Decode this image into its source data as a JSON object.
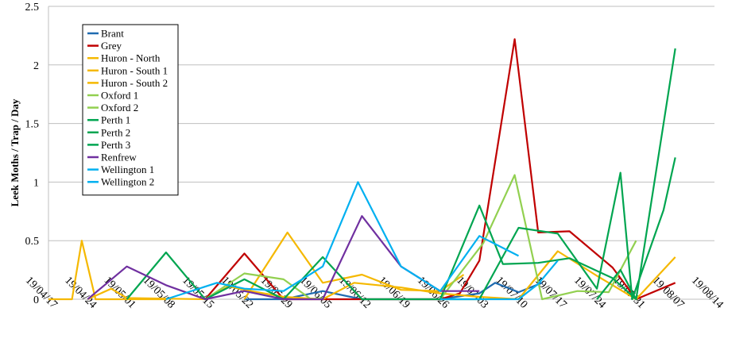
{
  "chart_data": {
    "type": "line",
    "title": "",
    "xlabel": "",
    "ylabel": "Leek Moths / Trap / Day",
    "ylim": [
      0,
      2.5
    ],
    "y_ticks": [
      0,
      0.5,
      1,
      1.5,
      2,
      2.5
    ],
    "y_tick_labels": [
      "0",
      "0.5",
      "1",
      "1.5",
      "2",
      "2.5"
    ],
    "grid": true,
    "legend_position": "top-left",
    "categories": [
      "19/04/17",
      "19/04/24",
      "19/05/01",
      "19/05/08",
      "19/05/15",
      "19/05/22",
      "19/05/29",
      "19/06/05",
      "19/06/12",
      "19/06/19",
      "19/06/26",
      "19/07/03",
      "19/07/10",
      "19/07/17",
      "19/07/24",
      "19/07/31",
      "19/08/07",
      "19/08/14"
    ],
    "series": [
      {
        "name": "Brant",
        "color": "#1f6bb0",
        "points": [
          [
            5.0,
            0
          ],
          [
            6.0,
            0
          ],
          [
            7.0,
            0.07
          ],
          [
            8.0,
            0
          ],
          [
            9.0,
            0
          ],
          [
            10.0,
            0
          ],
          [
            11.0,
            0.05
          ],
          [
            11.4,
            0.14
          ],
          [
            12.0,
            0.06
          ],
          [
            12.6,
            0.14
          ]
        ]
      },
      {
        "name": "Grey",
        "color": "#c00000",
        "points": [
          [
            4.0,
            0
          ],
          [
            5.0,
            0.39
          ],
          [
            6.0,
            0
          ],
          [
            10.0,
            0
          ],
          [
            10.5,
            0.05
          ],
          [
            11.0,
            0.33
          ],
          [
            11.9,
            2.22
          ],
          [
            12.5,
            0.57
          ],
          [
            13.3,
            0.58
          ],
          [
            14.4,
            0.27
          ],
          [
            15.0,
            0
          ],
          [
            16.0,
            0.14
          ]
        ]
      },
      {
        "name": "Huron - North",
        "color": "#f5b800",
        "points": [
          [
            0.0,
            0
          ],
          [
            0.6,
            0
          ],
          [
            0.85,
            0.5
          ],
          [
            1.2,
            0
          ],
          [
            2.0,
            0
          ],
          [
            2.5,
            0
          ],
          [
            3.0,
            0
          ]
        ]
      },
      {
        "name": "Huron - South 1",
        "color": "#f5b800",
        "points": [
          [
            1.0,
            0
          ],
          [
            1.6,
            0.09
          ],
          [
            2.0,
            0.01
          ],
          [
            4.0,
            0
          ],
          [
            4.6,
            0.11
          ],
          [
            5.0,
            0.08
          ],
          [
            6.0,
            0.02
          ],
          [
            7.0,
            0
          ],
          [
            7.8,
            0.14
          ],
          [
            9.0,
            0.1
          ],
          [
            10.0,
            0.05
          ],
          [
            11.0,
            0.02
          ],
          [
            12.0,
            0
          ],
          [
            13.0,
            0.41
          ],
          [
            14.0,
            0.2
          ],
          [
            15.0,
            0
          ],
          [
            16.0,
            0.36
          ]
        ]
      },
      {
        "name": "Huron - South 2",
        "color": "#f5b800",
        "points": [
          [
            5.0,
            0
          ],
          [
            6.1,
            0.57
          ],
          [
            7.0,
            0.14
          ],
          [
            8.0,
            0.21
          ],
          [
            9.0,
            0.08
          ],
          [
            10.0,
            0.07
          ],
          [
            10.6,
            0.21
          ]
        ]
      },
      {
        "name": "Oxford 1",
        "color": "#92d050",
        "points": [
          [
            10.0,
            0
          ],
          [
            11.1,
            0.48
          ],
          [
            11.9,
            1.06
          ],
          [
            12.6,
            0
          ],
          [
            13.5,
            0.07
          ],
          [
            14.3,
            0.06
          ],
          [
            15.0,
            0.5
          ]
        ]
      },
      {
        "name": "Oxford 2",
        "color": "#92d050",
        "points": [
          [
            4.0,
            0
          ],
          [
            5.0,
            0.22
          ],
          [
            6.0,
            0.17
          ],
          [
            6.7,
            0
          ],
          [
            7.0,
            0.01
          ]
        ]
      },
      {
        "name": "Perth 1",
        "color": "#00a550",
        "points": [
          [
            2.0,
            0
          ],
          [
            3.0,
            0.4
          ],
          [
            4.0,
            0
          ],
          [
            5.0,
            0.17
          ],
          [
            6.0,
            0
          ],
          [
            7.0,
            0.36
          ],
          [
            8.0,
            0
          ],
          [
            9.0,
            0
          ],
          [
            10.0,
            0
          ],
          [
            11.0,
            0
          ],
          [
            12.0,
            0.61
          ],
          [
            13.0,
            0.56
          ],
          [
            14.0,
            0.09
          ],
          [
            14.6,
            1.08
          ],
          [
            14.9,
            0
          ],
          [
            15.7,
            0.76
          ],
          [
            16.0,
            1.21
          ]
        ]
      },
      {
        "name": "Perth 2",
        "color": "#00a550",
        "points": [
          [
            10.0,
            0
          ],
          [
            11.0,
            0.8
          ],
          [
            11.6,
            0.3
          ],
          [
            12.5,
            0.31
          ],
          [
            13.3,
            0.35
          ],
          [
            14.4,
            0.18
          ],
          [
            15.0,
            0
          ],
          [
            16.0,
            2.14
          ]
        ]
      },
      {
        "name": "Perth 3",
        "color": "#00a550",
        "points": [
          [
            14.0,
            0
          ],
          [
            14.6,
            0.25
          ],
          [
            15.0,
            0
          ]
        ]
      },
      {
        "name": "Renfrew",
        "color": "#7030a0",
        "points": [
          [
            1.0,
            0
          ],
          [
            2.0,
            0.28
          ],
          [
            3.0,
            0.12
          ],
          [
            4.0,
            0
          ],
          [
            5.0,
            0.07
          ],
          [
            6.0,
            0
          ],
          [
            7.0,
            0
          ],
          [
            8.0,
            0.71
          ],
          [
            9.0,
            0.28
          ],
          [
            10.0,
            0.07
          ],
          [
            11.0,
            0.07
          ]
        ]
      },
      {
        "name": "Wellington 1",
        "color": "#00b0f0",
        "points": [
          [
            3.0,
            0
          ],
          [
            4.3,
            0.14
          ],
          [
            5.0,
            0.09
          ],
          [
            6.0,
            0.07
          ],
          [
            7.0,
            0.28
          ],
          [
            7.9,
            1.0
          ],
          [
            9.0,
            0.28
          ],
          [
            10.0,
            0.07
          ],
          [
            11.0,
            0.54
          ],
          [
            12.0,
            0.37
          ]
        ]
      },
      {
        "name": "Wellington 2",
        "color": "#00b0f0",
        "points": [
          [
            10.0,
            0
          ],
          [
            11.0,
            0
          ],
          [
            12.0,
            0
          ],
          [
            12.5,
            0.13
          ],
          [
            13.0,
            0.33
          ]
        ]
      }
    ]
  }
}
